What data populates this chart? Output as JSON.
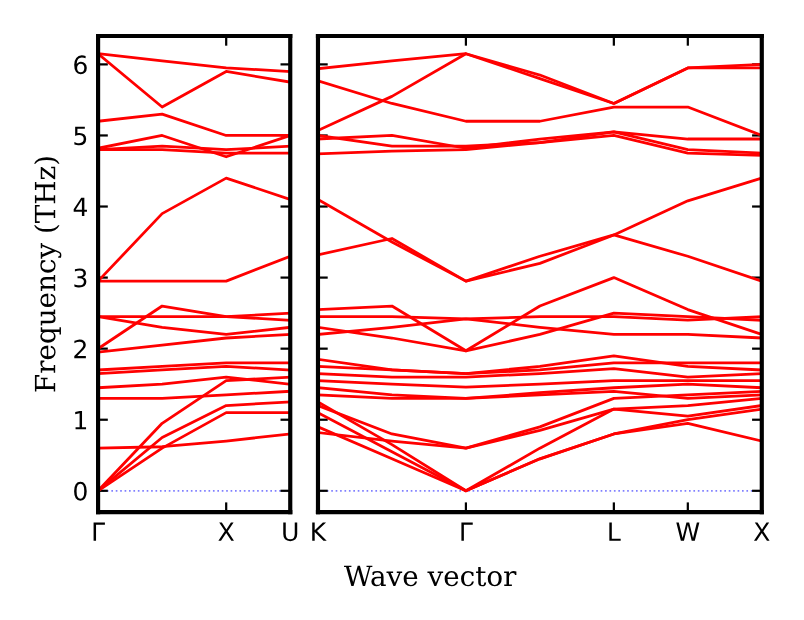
{
  "chart_data": [
    {
      "type": "line",
      "ylabel": "Frequency (THz)",
      "ylim": [
        -0.3,
        6.4
      ],
      "yticks": [
        0,
        1,
        2,
        3,
        4,
        5,
        6
      ],
      "categories": [
        "Γ",
        null,
        "X",
        "U"
      ],
      "grid": false,
      "ref_lines": [
        {
          "axis": "y",
          "value": 0,
          "color": "#8080ff",
          "line_style": "dotted"
        }
      ],
      "series": [
        {
          "color": "#ff0000",
          "values": [
            0.6,
            0.62,
            0.7,
            0.8
          ]
        },
        {
          "color": "#ff0000",
          "values": [
            0,
            0.6,
            1.1,
            1.1
          ]
        },
        {
          "color": "#ff0000",
          "values": [
            0,
            0.75,
            1.2,
            1.25
          ]
        },
        {
          "color": "#ff0000",
          "values": [
            0,
            0.95,
            1.55,
            1.6
          ]
        },
        {
          "color": "#ff0000",
          "values": [
            1.3,
            1.3,
            1.35,
            1.4
          ]
        },
        {
          "color": "#ff0000",
          "values": [
            1.45,
            1.5,
            1.6,
            1.5
          ]
        },
        {
          "color": "#ff0000",
          "values": [
            1.65,
            1.7,
            1.75,
            1.7
          ]
        },
        {
          "color": "#ff0000",
          "values": [
            1.7,
            1.75,
            1.8,
            1.8
          ]
        },
        {
          "color": "#ff0000",
          "values": [
            1.95,
            2.05,
            2.15,
            2.2
          ]
        },
        {
          "color": "#ff0000",
          "values": [
            2.0,
            2.6,
            2.45,
            2.4
          ]
        },
        {
          "color": "#ff0000",
          "values": [
            2.45,
            2.3,
            2.2,
            2.3
          ]
        },
        {
          "color": "#ff0000",
          "values": [
            2.45,
            2.45,
            2.45,
            2.5
          ]
        },
        {
          "color": "#ff0000",
          "values": [
            2.95,
            2.95,
            2.95,
            3.3
          ]
        },
        {
          "color": "#ff0000",
          "values": [
            2.95,
            3.9,
            4.4,
            4.1
          ]
        },
        {
          "color": "#ff0000",
          "values": [
            4.8,
            4.8,
            4.75,
            4.75
          ]
        },
        {
          "color": "#ff0000",
          "values": [
            4.82,
            5.0,
            4.7,
            5.0
          ]
        },
        {
          "color": "#ff0000",
          "values": [
            4.8,
            4.85,
            4.8,
            4.85
          ]
        },
        {
          "color": "#ff0000",
          "values": [
            5.2,
            5.3,
            5.0,
            5.0
          ]
        },
        {
          "color": "#ff0000",
          "values": [
            6.15,
            5.4,
            5.9,
            5.75
          ]
        },
        {
          "color": "#ff0000",
          "values": [
            6.15,
            6.05,
            5.95,
            5.9
          ]
        }
      ]
    },
    {
      "type": "line",
      "xlabel": "Wave vector",
      "ylim": [
        -0.3,
        6.4
      ],
      "yticks": [
        0,
        1,
        2,
        3,
        4,
        5,
        6
      ],
      "categories": [
        "K",
        null,
        "Γ",
        null,
        "L",
        "W",
        "X"
      ],
      "tick_labels": "x",
      "grid": false,
      "ref_lines": [
        {
          "axis": "y",
          "value": 0,
          "color": "#8080ff",
          "line_style": "dotted"
        }
      ],
      "series": [
        {
          "color": "#ff0000",
          "values": [
            5.94,
            6.05,
            6.15,
            5.85,
            5.45,
            5.95,
            5.95
          ]
        },
        {
          "color": "#ff0000",
          "values": [
            5.77,
            5.45,
            5.2,
            5.2,
            5.4,
            5.4,
            5.0
          ]
        },
        {
          "color": "#ff0000",
          "values": [
            5.07,
            5.55,
            6.15,
            5.8,
            5.45,
            5.95,
            6.0
          ]
        },
        {
          "color": "#ff0000",
          "values": [
            5.0,
            4.85,
            4.85,
            4.9,
            5.05,
            4.95,
            4.95
          ]
        },
        {
          "color": "#ff0000",
          "values": [
            4.95,
            5.0,
            4.82,
            4.95,
            5.05,
            4.8,
            4.75
          ]
        },
        {
          "color": "#ff0000",
          "values": [
            4.74,
            4.78,
            4.8,
            4.9,
            5.0,
            4.75,
            4.72
          ]
        },
        {
          "color": "#ff0000",
          "values": [
            4.1,
            3.5,
            2.95,
            3.3,
            3.6,
            4.08,
            4.4
          ]
        },
        {
          "color": "#ff0000",
          "values": [
            3.32,
            3.55,
            2.95,
            3.2,
            3.6,
            3.3,
            2.95
          ]
        },
        {
          "color": "#ff0000",
          "values": [
            2.55,
            2.6,
            1.97,
            2.6,
            3.0,
            2.55,
            2.2
          ]
        },
        {
          "color": "#ff0000",
          "values": [
            2.45,
            2.45,
            2.42,
            2.45,
            2.45,
            2.4,
            2.45
          ]
        },
        {
          "color": "#ff0000",
          "values": [
            2.3,
            2.15,
            1.97,
            2.2,
            2.5,
            2.45,
            2.4
          ]
        },
        {
          "color": "#ff0000",
          "values": [
            2.2,
            2.3,
            2.42,
            2.3,
            2.2,
            2.2,
            2.15
          ]
        },
        {
          "color": "#ff0000",
          "values": [
            1.85,
            1.7,
            1.65,
            1.75,
            1.9,
            1.75,
            1.7
          ]
        },
        {
          "color": "#ff0000",
          "values": [
            1.75,
            1.7,
            1.65,
            1.7,
            1.8,
            1.8,
            1.8
          ]
        },
        {
          "color": "#ff0000",
          "values": [
            1.65,
            1.6,
            1.6,
            1.65,
            1.72,
            1.6,
            1.65
          ]
        },
        {
          "color": "#ff0000",
          "values": [
            1.55,
            1.5,
            1.46,
            1.5,
            1.55,
            1.55,
            1.55
          ]
        },
        {
          "color": "#ff0000",
          "values": [
            1.45,
            1.35,
            1.3,
            1.38,
            1.45,
            1.5,
            1.45
          ]
        },
        {
          "color": "#ff0000",
          "values": [
            1.35,
            1.3,
            1.3,
            1.35,
            1.4,
            1.3,
            1.35
          ]
        },
        {
          "color": "#ff0000",
          "values": [
            1.25,
            0.65,
            0,
            0.6,
            1.15,
            1.2,
            1.3
          ]
        },
        {
          "color": "#ff0000",
          "values": [
            1.1,
            0.55,
            0,
            0.45,
            0.8,
            1.0,
            1.15
          ]
        },
        {
          "color": "#ff0000",
          "values": [
            0.9,
            0.45,
            0,
            0.45,
            0.8,
            0.95,
            0.7
          ]
        },
        {
          "color": "#ff0000",
          "values": [
            1.2,
            0.8,
            0.6,
            0.9,
            1.3,
            1.35,
            1.4
          ]
        },
        {
          "color": "#ff0000",
          "values": [
            0.82,
            0.7,
            0.6,
            0.85,
            1.15,
            1.05,
            1.2
          ]
        }
      ]
    }
  ]
}
